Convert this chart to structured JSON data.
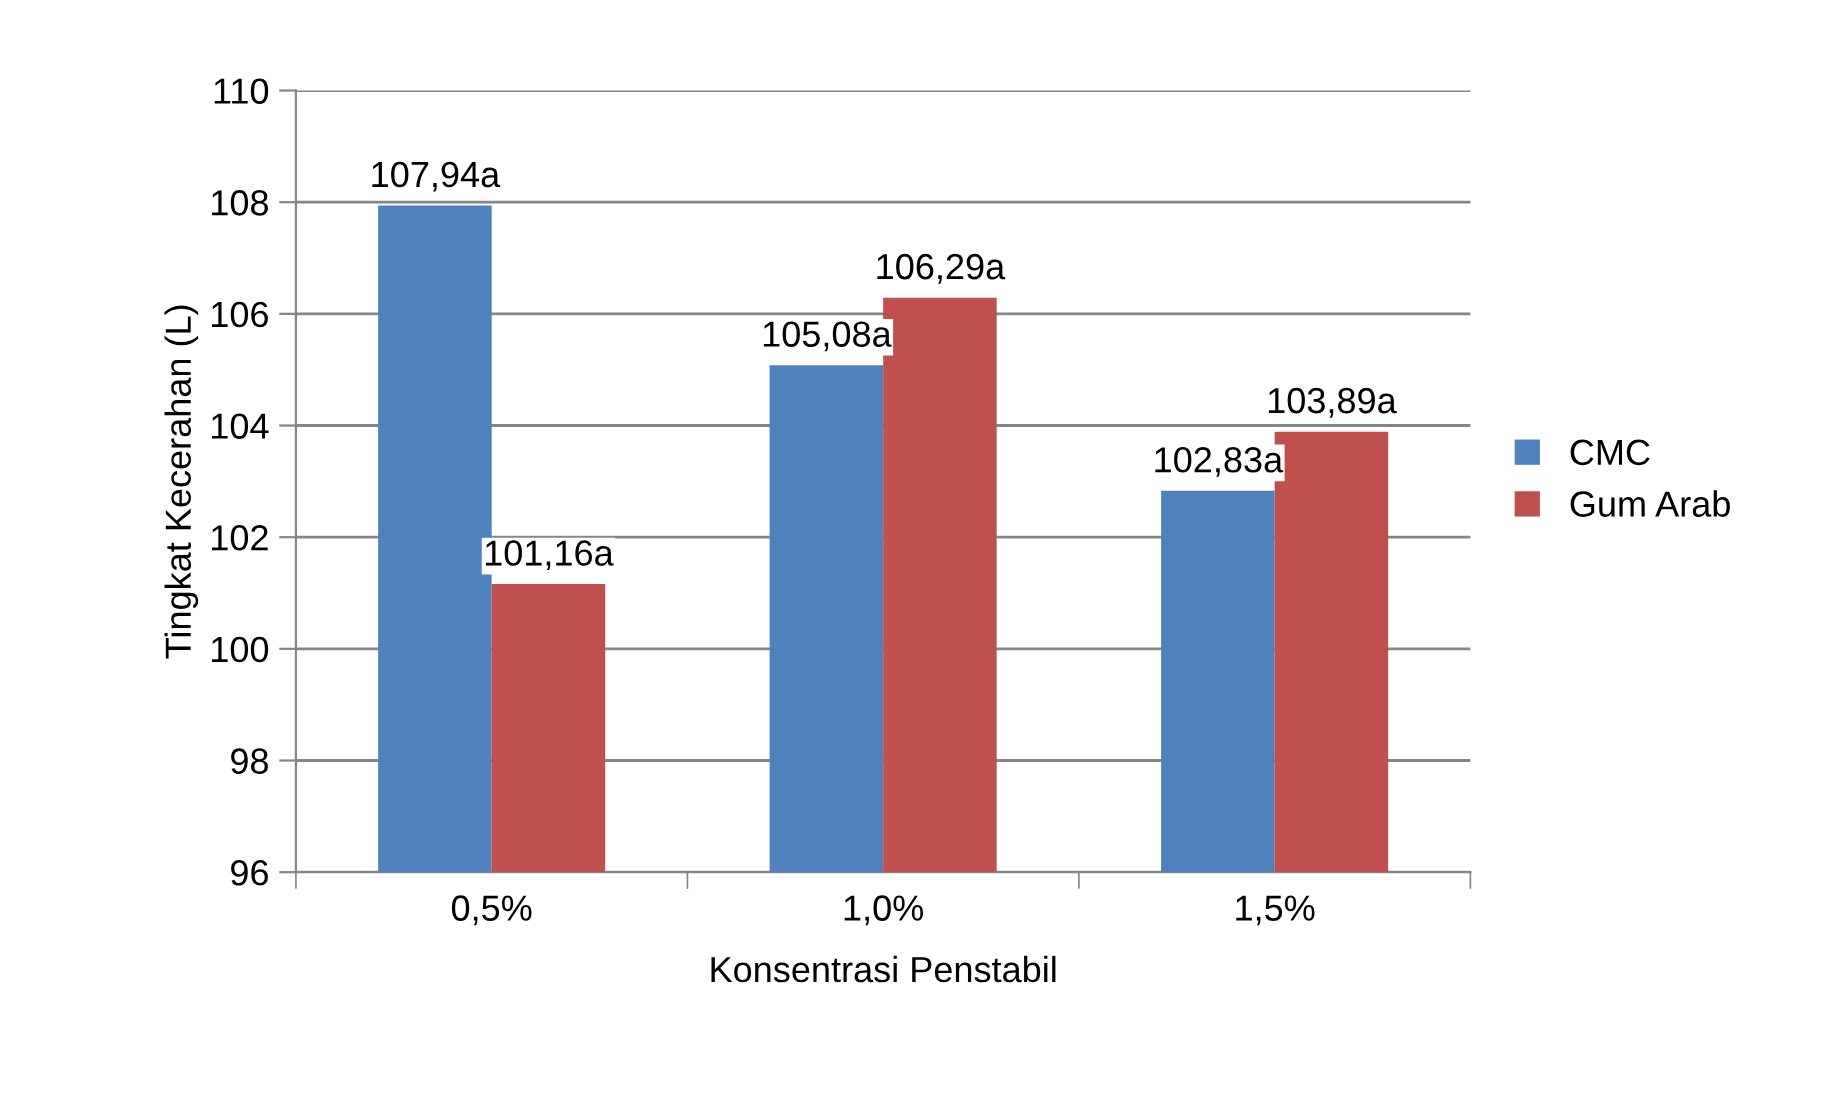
{
  "chart_data": {
    "type": "bar",
    "xlabel": "Konsentrasi Penstabil",
    "ylabel": "Tingkat Kecerahan (L)",
    "categories": [
      "0,5%",
      "1,0%",
      "1,5%"
    ],
    "series": [
      {
        "name": "CMC",
        "color": "#4f81bd",
        "values": [
          107.94,
          105.08,
          102.83
        ],
        "value_labels": [
          "107,94a",
          "105,08a",
          "102,83a"
        ]
      },
      {
        "name": "Gum Arab",
        "color": "#c0504d",
        "values": [
          101.16,
          106.29,
          103.89
        ],
        "value_labels": [
          "101,16a",
          "106,29a",
          "103,89a"
        ]
      }
    ],
    "ylim": [
      96,
      110
    ],
    "yticks": [
      96,
      98,
      100,
      102,
      104,
      106,
      108,
      110
    ],
    "grid": "y",
    "legend": "right"
  }
}
